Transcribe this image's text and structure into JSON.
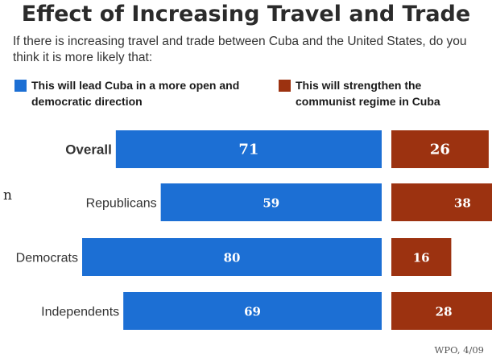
{
  "chart_data": {
    "type": "bar",
    "title": "Effect of Increasing Travel and Trade",
    "subtitle": "If there is increasing travel and trade between Cuba and the United States, do you think it is more likely that:",
    "categories": [
      "Overall",
      "Republicans",
      "Democrats",
      "Independents"
    ],
    "series": [
      {
        "name": "This will lead Cuba in a more open and democratic direction",
        "color": "#1c6fd4",
        "values": [
          71,
          59,
          80,
          69
        ]
      },
      {
        "name": "This will strengthen the communist regime in Cuba",
        "color": "#9c3210",
        "values": [
          26,
          38,
          16,
          28
        ]
      }
    ],
    "ylim": [
      0,
      100
    ],
    "source": "WPO, 4/09"
  },
  "stray_text": "n"
}
